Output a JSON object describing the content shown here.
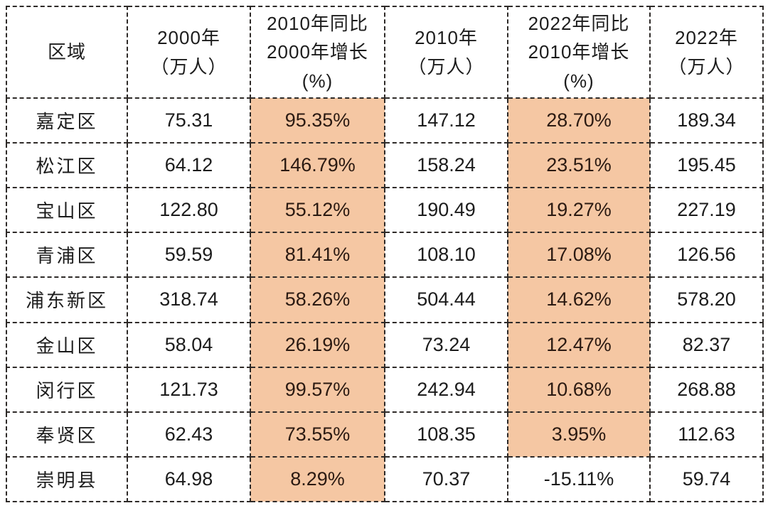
{
  "style": {
    "highlight_bg": "#f5c7a3",
    "highlight_text": "#2b1a12",
    "border_color": "#2e2a28",
    "text_color": "#1c1c1c",
    "page_bg": "#ffffff"
  },
  "chart_data": {
    "type": "table",
    "title": "",
    "columns": [
      {
        "key": "region",
        "label": "区域",
        "highlight": false
      },
      {
        "key": "pop-2000",
        "label": "2000年\n（万人）",
        "highlight": false
      },
      {
        "key": "growth-2000-2010",
        "label": "2010年同比\n2000年增长\n(%)",
        "highlight": true
      },
      {
        "key": "pop-2010",
        "label": "2010年\n（万人）",
        "highlight": false
      },
      {
        "key": "growth-2010-2022",
        "label": "2022年同比\n2010年增长\n(%)",
        "highlight": true
      },
      {
        "key": "pop-2022",
        "label": "2022年\n（万人）",
        "highlight": false
      }
    ],
    "rows": [
      {
        "cells": [
          "嘉定区",
          "75.31",
          "95.35%",
          "147.12",
          "28.70%",
          "189.34"
        ],
        "highlighted": [
          2,
          4
        ]
      },
      {
        "cells": [
          "松江区",
          "64.12",
          "146.79%",
          "158.24",
          "23.51%",
          "195.45"
        ],
        "highlighted": [
          2,
          4
        ]
      },
      {
        "cells": [
          "宝山区",
          "122.80",
          "55.12%",
          "190.49",
          "19.27%",
          "227.19"
        ],
        "highlighted": [
          2,
          4
        ]
      },
      {
        "cells": [
          "青浦区",
          "59.59",
          "81.41%",
          "108.10",
          "17.08%",
          "126.56"
        ],
        "highlighted": [
          2,
          4
        ]
      },
      {
        "cells": [
          "浦东新区",
          "318.74",
          "58.26%",
          "504.44",
          "14.62%",
          "578.20"
        ],
        "highlighted": [
          2,
          4
        ]
      },
      {
        "cells": [
          "金山区",
          "58.04",
          "26.19%",
          "73.24",
          "12.47%",
          "82.37"
        ],
        "highlighted": [
          2,
          4
        ]
      },
      {
        "cells": [
          "闵行区",
          "121.73",
          "99.57%",
          "242.94",
          "10.68%",
          "268.88"
        ],
        "highlighted": [
          2,
          4
        ]
      },
      {
        "cells": [
          "奉贤区",
          "62.43",
          "73.55%",
          "108.35",
          "3.95%",
          "112.63"
        ],
        "highlighted": [
          2,
          4
        ]
      },
      {
        "cells": [
          "崇明县",
          "64.98",
          "8.29%",
          "70.37",
          "-15.11%",
          "59.74"
        ],
        "highlighted": [
          2
        ]
      }
    ]
  }
}
